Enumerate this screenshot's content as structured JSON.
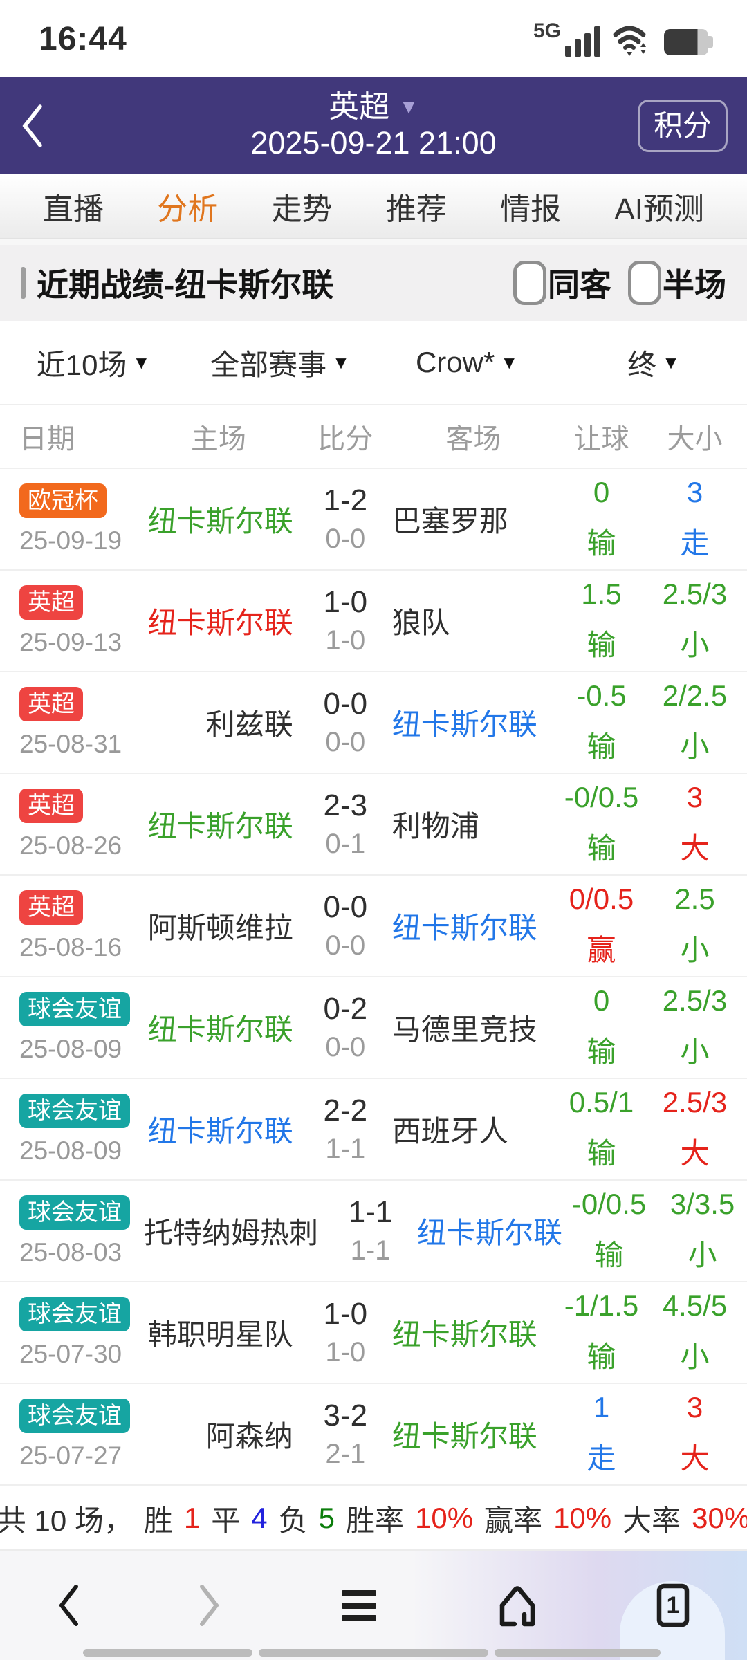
{
  "status_bar": {
    "time": "16:44",
    "network": "5G"
  },
  "header": {
    "league": "英超",
    "datetime": "2025-09-21 21:00",
    "points_button": "积分"
  },
  "tabs": [
    {
      "label": "直播",
      "active": false
    },
    {
      "label": "分析",
      "active": true
    },
    {
      "label": "走势",
      "active": false
    },
    {
      "label": "推荐",
      "active": false
    },
    {
      "label": "情报",
      "active": false
    },
    {
      "label": "AI预测",
      "active": false
    }
  ],
  "section": {
    "title": "近期战绩-纽卡斯尔联",
    "checkboxes": [
      {
        "label": "同客",
        "checked": false
      },
      {
        "label": "半场",
        "checked": false
      }
    ]
  },
  "filters": [
    "近10场",
    "全部赛事",
    "Crow*",
    "终"
  ],
  "table": {
    "headers": [
      "日期",
      "主场",
      "比分",
      "客场",
      "让球",
      "大小"
    ],
    "rows": [
      {
        "badge": "欧冠杯",
        "badge_color": "orange",
        "date": "25-09-19",
        "home": "纽卡斯尔联",
        "home_color": "green",
        "score_ft": "1-2",
        "score_ht": "0-0",
        "away": "巴塞罗那",
        "away_color": "dark",
        "handicap": "0",
        "handicap_result": "输",
        "handicap_color": "green",
        "ou": "3",
        "ou_result": "走",
        "ou_color": "blue"
      },
      {
        "badge": "英超",
        "badge_color": "red",
        "date": "25-09-13",
        "home": "纽卡斯尔联",
        "home_color": "red",
        "score_ft": "1-0",
        "score_ht": "1-0",
        "away": "狼队",
        "away_color": "dark",
        "handicap": "1.5",
        "handicap_result": "输",
        "handicap_color": "green",
        "ou": "2.5/3",
        "ou_result": "小",
        "ou_color": "green"
      },
      {
        "badge": "英超",
        "badge_color": "red",
        "date": "25-08-31",
        "home": "利兹联",
        "home_color": "dark",
        "score_ft": "0-0",
        "score_ht": "0-0",
        "away": "纽卡斯尔联",
        "away_color": "blue",
        "handicap": "-0.5",
        "handicap_result": "输",
        "handicap_color": "green",
        "ou": "2/2.5",
        "ou_result": "小",
        "ou_color": "green"
      },
      {
        "badge": "英超",
        "badge_color": "red",
        "date": "25-08-26",
        "home": "纽卡斯尔联",
        "home_color": "green",
        "score_ft": "2-3",
        "score_ht": "0-1",
        "away": "利物浦",
        "away_color": "dark",
        "handicap": "-0/0.5",
        "handicap_result": "输",
        "handicap_color": "green",
        "ou": "3",
        "ou_result": "大",
        "ou_color": "red"
      },
      {
        "badge": "英超",
        "badge_color": "red",
        "date": "25-08-16",
        "home": "阿斯顿维拉",
        "home_color": "dark",
        "score_ft": "0-0",
        "score_ht": "0-0",
        "away": "纽卡斯尔联",
        "away_color": "blue",
        "handicap": "0/0.5",
        "handicap_result": "赢",
        "handicap_color": "red",
        "ou": "2.5",
        "ou_result": "小",
        "ou_color": "green"
      },
      {
        "badge": "球会友谊",
        "badge_color": "teal",
        "date": "25-08-09",
        "home": "纽卡斯尔联",
        "home_color": "green",
        "score_ft": "0-2",
        "score_ht": "0-0",
        "away": "马德里竞技",
        "away_color": "dark",
        "handicap": "0",
        "handicap_result": "输",
        "handicap_color": "green",
        "ou": "2.5/3",
        "ou_result": "小",
        "ou_color": "green"
      },
      {
        "badge": "球会友谊",
        "badge_color": "teal",
        "date": "25-08-09",
        "home": "纽卡斯尔联",
        "home_color": "blue",
        "score_ft": "2-2",
        "score_ht": "1-1",
        "away": "西班牙人",
        "away_color": "dark",
        "handicap": "0.5/1",
        "handicap_result": "输",
        "handicap_color": "green",
        "ou": "2.5/3",
        "ou_result": "大",
        "ou_color": "red"
      },
      {
        "badge": "球会友谊",
        "badge_color": "teal",
        "date": "25-08-03",
        "home": "托特纳姆热刺",
        "home_color": "dark",
        "score_ft": "1-1",
        "score_ht": "1-1",
        "away": "纽卡斯尔联",
        "away_color": "blue",
        "handicap": "-0/0.5",
        "handicap_result": "输",
        "handicap_color": "green",
        "ou": "3/3.5",
        "ou_result": "小",
        "ou_color": "green"
      },
      {
        "badge": "球会友谊",
        "badge_color": "teal",
        "date": "25-07-30",
        "home": "韩职明星队",
        "home_color": "dark",
        "score_ft": "1-0",
        "score_ht": "1-0",
        "away": "纽卡斯尔联",
        "away_color": "green",
        "handicap": "-1/1.5",
        "handicap_result": "输",
        "handicap_color": "green",
        "ou": "4.5/5",
        "ou_result": "小",
        "ou_color": "green"
      },
      {
        "badge": "球会友谊",
        "badge_color": "teal",
        "date": "25-07-27",
        "home": "阿森纳",
        "home_color": "dark",
        "score_ft": "3-2",
        "score_ht": "2-1",
        "away": "纽卡斯尔联",
        "away_color": "green",
        "handicap": "1",
        "handicap_result": "走",
        "handicap_color": "blue",
        "ou": "3",
        "ou_result": "大",
        "ou_color": "red"
      }
    ]
  },
  "summary": {
    "parts": [
      {
        "text": "共 10 场，",
        "color": "dark"
      },
      {
        "text": "胜",
        "color": "dark"
      },
      {
        "text": "1",
        "color": "red"
      },
      {
        "text": "平",
        "color": "dark"
      },
      {
        "text": "4",
        "color": "blue2"
      },
      {
        "text": "负",
        "color": "dark"
      },
      {
        "text": "5",
        "color": "green2"
      },
      {
        "text": "胜率",
        "color": "dark"
      },
      {
        "text": "10%",
        "color": "red"
      },
      {
        "text": "赢率",
        "color": "dark"
      },
      {
        "text": "10%",
        "color": "red"
      },
      {
        "text": "大率",
        "color": "dark"
      },
      {
        "text": "30%",
        "color": "red"
      }
    ]
  },
  "bottom_nav": {
    "tab_count": "1"
  },
  "colors": {
    "header_purple": "#41387b",
    "active_tab_orange": "#e0761e",
    "badge_orange": "#f2691d",
    "badge_red": "#ee4441",
    "badge_teal": "#16a5a2",
    "win_red": "#e5231b",
    "loss_green": "#3aa12b",
    "draw_blue": "#2277e8"
  }
}
